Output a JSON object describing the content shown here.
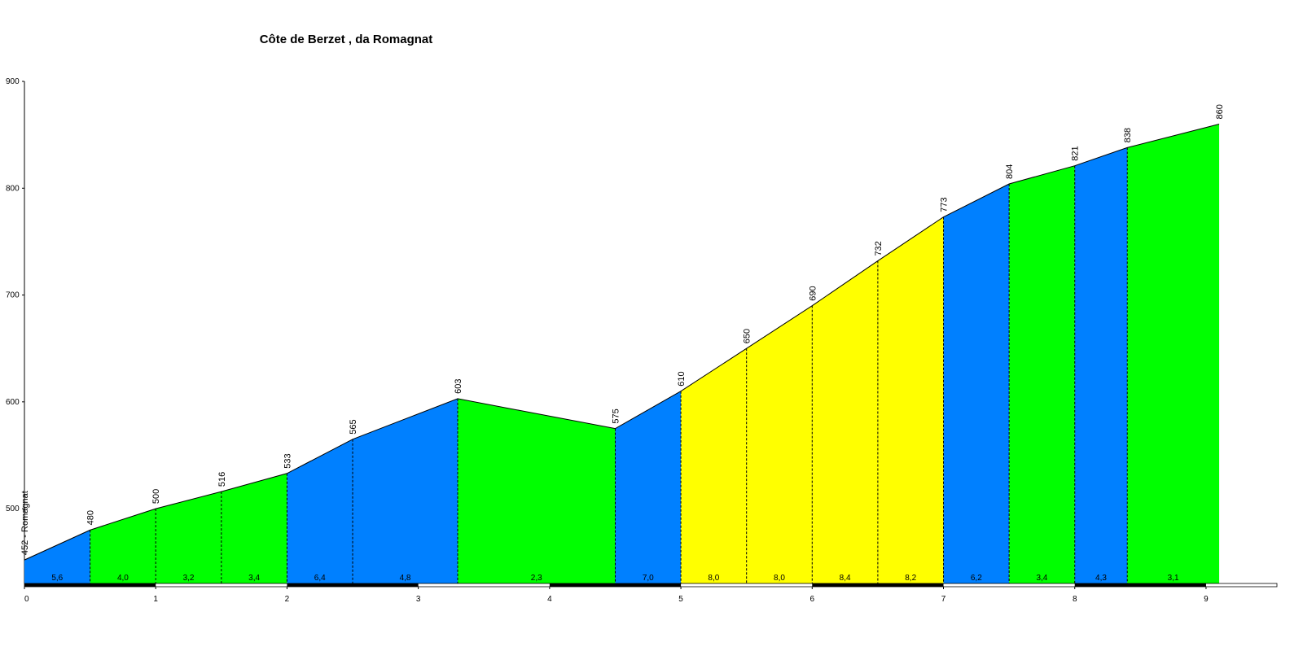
{
  "chart_data": {
    "type": "elevation-profile",
    "title": "Côte de Berzet , da Romagnat",
    "x": [
      0,
      0.5,
      1,
      1.5,
      2,
      2.5,
      3.3,
      4.5,
      5,
      5.5,
      6,
      6.5,
      7,
      7.5,
      8,
      8.4,
      9.1
    ],
    "values": [
      452,
      480,
      500,
      516,
      533,
      565,
      603,
      575,
      610,
      650,
      690,
      732,
      773,
      804,
      821,
      838,
      860
    ],
    "value_labels": [
      "452 - Romagnat",
      "480",
      "500",
      "516",
      "533",
      "565",
      "603",
      "575",
      "610",
      "650",
      "690",
      "732",
      "773",
      "804",
      "821",
      "838",
      "860"
    ],
    "gradients": [
      5.6,
      4.0,
      3.2,
      3.4,
      6.4,
      4.8,
      2.3,
      7.0,
      8.0,
      8.0,
      8.4,
      8.2,
      6.2,
      3.4,
      4.3,
      3.1
    ],
    "gradient_labels": [
      "5,6",
      "4,0",
      "3,2",
      "3,4",
      "6,4",
      "4,8",
      "2,3",
      "7,0",
      "8,0",
      "8,0",
      "8,4",
      "8,2",
      "6,2",
      "3,4",
      "4,3",
      "3,1"
    ],
    "segment_colors": [
      "#0080ff",
      "#00ff00",
      "#00ff00",
      "#00ff00",
      "#0080ff",
      "#0080ff",
      "#00ff00",
      "#0080ff",
      "#ffff00",
      "#ffff00",
      "#ffff00",
      "#ffff00",
      "#0080ff",
      "#00ff00",
      "#0080ff",
      "#00ff00"
    ],
    "xlim": [
      0,
      9.54
    ],
    "xticks": [
      0,
      1,
      2,
      3,
      4,
      5,
      6,
      7,
      8,
      9
    ],
    "ylim": [
      430,
      900
    ],
    "yticks": [
      500,
      600,
      700,
      800,
      900
    ]
  }
}
